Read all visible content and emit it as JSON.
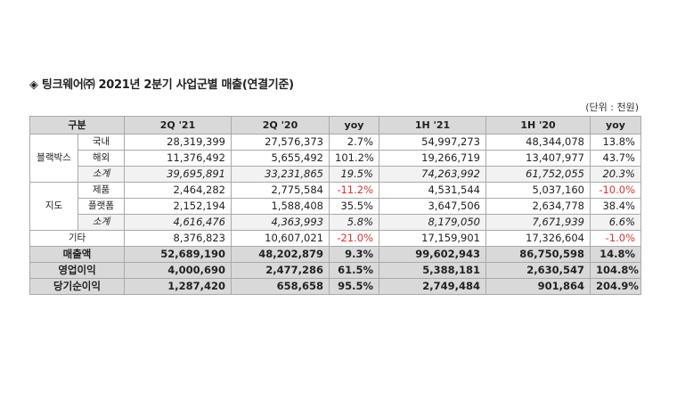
{
  "title": "◈ 팅크웨어㈜ 2021년 2분기 사업군별 매출(연결기준)",
  "unit": "(단위 : 천원)",
  "headers": [
    "구분",
    "2Q '21",
    "2Q '20",
    "yoy",
    "1H '21",
    "1H '20",
    "yoy"
  ],
  "blackbox": {
    "label": "블랙박스",
    "rows": [
      {
        "sub": "국내",
        "q21": "28,319,399",
        "q20": "27,576,373",
        "qyoy": "2.7%",
        "h21": "54,997,273",
        "h20": "48,344,078",
        "hyoy": "13.8%"
      },
      {
        "sub": "해외",
        "q21": "11,376,492",
        "q20": "5,655,492",
        "qyoy": "101.2%",
        "h21": "19,266,719",
        "h20": "13,407,977",
        "hyoy": "43.7%"
      },
      {
        "sub": "소계",
        "q21": "39,695,891",
        "q20": "33,231,865",
        "qyoy": "19.5%",
        "h21": "74,263,992",
        "h20": "61,752,055",
        "hyoy": "20.3%"
      }
    ]
  },
  "map": {
    "label": "지도",
    "rows": [
      {
        "sub": "제품",
        "q21": "2,464,282",
        "q20": "2,775,584",
        "qyoy": "-11.2%",
        "h21": "4,531,544",
        "h20": "5,037,160",
        "hyoy": "-10.0%"
      },
      {
        "sub": "플랫폼",
        "q21": "2,152,194",
        "q20": "1,588,408",
        "qyoy": "35.5%",
        "h21": "3,647,506",
        "h20": "2,634,778",
        "hyoy": "38.4%"
      },
      {
        "sub": "소계",
        "q21": "4,616,476",
        "q20": "4,363,993",
        "qyoy": "5.8%",
        "h21": "8,179,050",
        "h20": "7,671,939",
        "hyoy": "6.6%"
      }
    ]
  },
  "etc": {
    "label": "기타",
    "q21": "8,376,823",
    "q20": "10,607,021",
    "qyoy": "-21.0%",
    "h21": "17,159,901",
    "h20": "17,326,604",
    "hyoy": "-1.0%"
  },
  "totals": [
    {
      "label": "매출액",
      "q21": "52,689,190",
      "q20": "48,202,879",
      "qyoy": "9.3%",
      "h21": "99,602,943",
      "h20": "86,750,598",
      "hyoy": "14.8%"
    },
    {
      "label": "영업이익",
      "q21": "4,000,690",
      "q20": "2,477,286",
      "qyoy": "61.5%",
      "h21": "5,388,181",
      "h20": "2,630,547",
      "hyoy": "104.8%"
    },
    {
      "label": "당기순이익",
      "q21": "1,287,420",
      "q20": "658,658",
      "qyoy": "95.5%",
      "h21": "2,749,484",
      "h20": "901,864",
      "hyoy": "204.9%"
    }
  ],
  "colors": {
    "header_bg": "#d9d9d9",
    "negative": "#e03030",
    "border": "#a9a9a9"
  }
}
